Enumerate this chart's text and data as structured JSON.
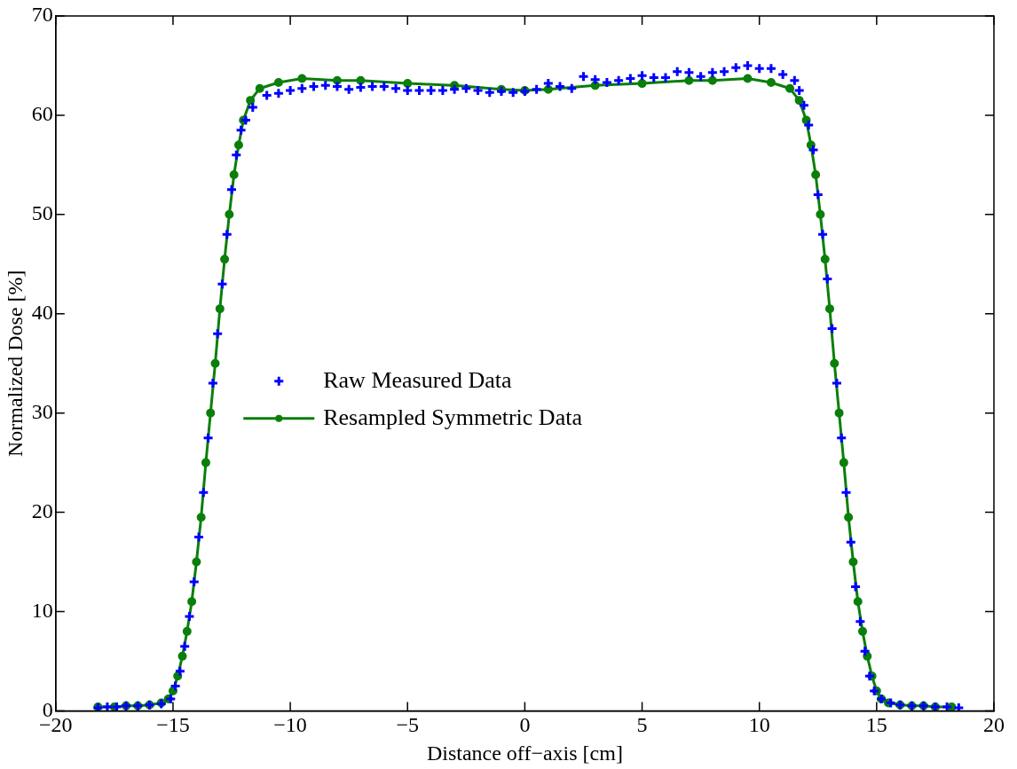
{
  "chart_data": {
    "type": "line",
    "xlabel": "Distance off−axis [cm]",
    "ylabel": "Normalized Dose [%]",
    "xlim": [
      -20,
      20
    ],
    "xticks": [
      {
        "value": -20,
        "label": "−20"
      },
      {
        "value": -15,
        "label": "−15"
      },
      {
        "value": -10,
        "label": "−10"
      },
      {
        "value": -5,
        "label": "−5"
      },
      0,
      5,
      10,
      15,
      20
    ],
    "ylim": [
      0,
      70
    ],
    "yticks": [
      0,
      10,
      20,
      30,
      40,
      50,
      60,
      70
    ],
    "grid": false,
    "legend": "center",
    "series": [
      {
        "name": "Raw Measured Data",
        "type": "scatter",
        "marker": "cross",
        "color": "#0000ff",
        "x": [
          -18.2,
          -17.8,
          -17.4,
          -17,
          -16.5,
          -16,
          -15.5,
          -15.1,
          -14.9,
          -14.7,
          -14.5,
          -14.3,
          -14.1,
          -13.9,
          -13.7,
          -13.5,
          -13.3,
          -13.1,
          -12.9,
          -12.7,
          -12.5,
          -12.3,
          -12.1,
          -11.9,
          -11.6,
          -11,
          -10.5,
          -10,
          -9.5,
          -9,
          -8.5,
          -8,
          -7.5,
          -7,
          -6.5,
          -6,
          -5.5,
          -5,
          -4.5,
          -4,
          -3.5,
          -3,
          -2.5,
          -2,
          -1.5,
          -1,
          -0.5,
          0,
          0.5,
          1,
          1.5,
          2,
          2.5,
          3,
          3.5,
          4,
          4.5,
          5,
          5.5,
          6,
          6.5,
          7,
          7.5,
          8,
          8.5,
          9,
          9.5,
          10,
          10.5,
          11,
          11.5,
          11.7,
          11.9,
          12.1,
          12.3,
          12.5,
          12.7,
          12.9,
          13.1,
          13.3,
          13.5,
          13.7,
          13.9,
          14.1,
          14.3,
          14.5,
          14.7,
          14.9,
          15.2,
          15.6,
          16,
          16.5,
          17,
          17.5,
          18,
          18.5
        ],
        "values": [
          0.3,
          0.4,
          0.4,
          0.5,
          0.5,
          0.6,
          0.7,
          1.2,
          2.5,
          4,
          6.5,
          9.5,
          13,
          17.5,
          22,
          27.5,
          33,
          38,
          43,
          48,
          52.5,
          56,
          58.5,
          59.5,
          60.8,
          62,
          62.2,
          62.5,
          62.7,
          62.9,
          63,
          62.9,
          62.6,
          62.8,
          62.9,
          62.9,
          62.7,
          62.5,
          62.5,
          62.5,
          62.5,
          62.6,
          62.7,
          62.5,
          62.3,
          62.4,
          62.3,
          62.4,
          62.6,
          63.2,
          62.9,
          62.7,
          63.9,
          63.6,
          63.3,
          63.5,
          63.7,
          64,
          63.8,
          63.8,
          64.4,
          64.3,
          63.9,
          64.3,
          64.4,
          64.8,
          65,
          64.7,
          64.7,
          64.1,
          63.5,
          62.5,
          61,
          59,
          56.5,
          52,
          48,
          43.5,
          38.5,
          33,
          27.5,
          22,
          17,
          12.5,
          9,
          6,
          3.5,
          2,
          1.2,
          0.8,
          0.6,
          0.5,
          0.5,
          0.4,
          0.4,
          0.3
        ]
      },
      {
        "name": "Resampled Symmetric Data",
        "type": "line",
        "marker": "circle",
        "line_style": "solid",
        "color": "#0a7f0a",
        "x": [
          -18.2,
          -17.5,
          -17,
          -16.5,
          -16,
          -15.5,
          -15.2,
          -15,
          -14.8,
          -14.6,
          -14.4,
          -14.2,
          -14,
          -13.8,
          -13.6,
          -13.4,
          -13.2,
          -13,
          -12.8,
          -12.6,
          -12.4,
          -12.2,
          -12,
          -11.7,
          -11.3,
          -10.5,
          -9.5,
          -8,
          -7,
          -5,
          -3,
          -1,
          0,
          1,
          3,
          5,
          7,
          8,
          9.5,
          10.5,
          11.3,
          11.7,
          12,
          12.2,
          12.4,
          12.6,
          12.8,
          13,
          13.2,
          13.4,
          13.6,
          13.8,
          14,
          14.2,
          14.4,
          14.6,
          14.8,
          15,
          15.2,
          15.5,
          16,
          16.5,
          17,
          17.5,
          18.2
        ],
        "values": [
          0.4,
          0.4,
          0.5,
          0.5,
          0.6,
          0.8,
          1.2,
          2,
          3.5,
          5.5,
          8,
          11,
          15,
          19.5,
          25,
          30,
          35,
          40.5,
          45.5,
          50,
          54,
          57,
          59.5,
          61.5,
          62.7,
          63.3,
          63.7,
          63.5,
          63.5,
          63.2,
          63,
          62.6,
          62.5,
          62.6,
          63,
          63.2,
          63.5,
          63.5,
          63.7,
          63.3,
          62.7,
          61.5,
          59.5,
          57,
          54,
          50,
          45.5,
          40.5,
          35,
          30,
          25,
          19.5,
          15,
          11,
          8,
          5.5,
          3.5,
          2,
          1.2,
          0.8,
          0.6,
          0.5,
          0.5,
          0.4,
          0.4
        ]
      }
    ]
  }
}
